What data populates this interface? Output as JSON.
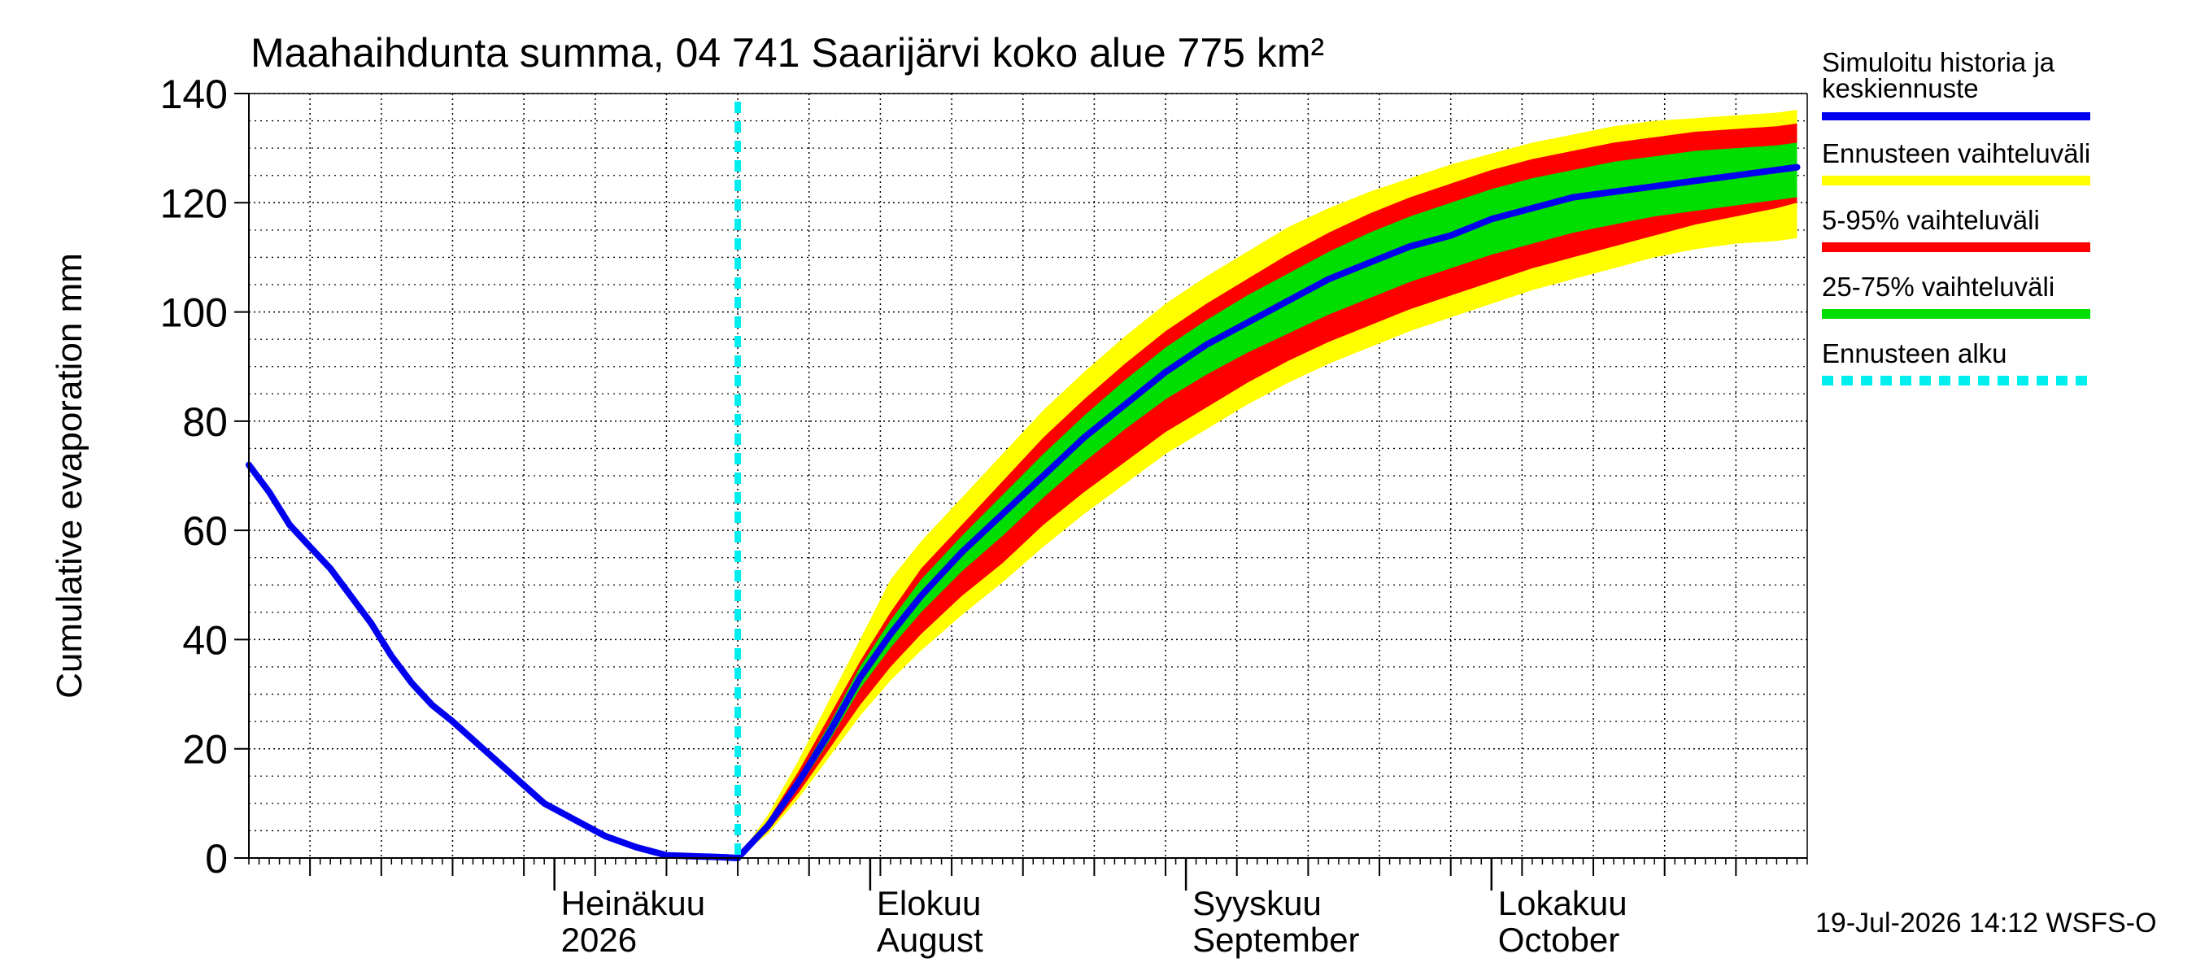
{
  "chart_data": {
    "type": "area",
    "title": "Maahaihdunta summa, 04 741 Saarijärvi koko alue 775 km²",
    "ylabel": "Cumulative evaporation   mm",
    "xlabel": "",
    "ylim": [
      0,
      140
    ],
    "y_ticks": [
      0,
      20,
      40,
      60,
      80,
      100,
      120,
      140
    ],
    "x_range": [
      "2026-06-01",
      "2026-10-31"
    ],
    "grid": true,
    "legend_position": "right",
    "month_labels": [
      {
        "date": "2026-07-01",
        "line1": "Heinäkuu",
        "line2": "2026"
      },
      {
        "date": "2026-08-01",
        "line1": "Elokuu",
        "line2": "August"
      },
      {
        "date": "2026-09-01",
        "line1": "Syyskuu",
        "line2": "September"
      },
      {
        "date": "2026-10-01",
        "line1": "Lokakuu",
        "line2": "October"
      }
    ],
    "forecast_start": "2026-07-19",
    "legend": [
      {
        "label": "Simuloitu historia ja keskiennuste",
        "color": "#0000ee",
        "style": "solid"
      },
      {
        "label": "Ennusteen vaihteluväli",
        "color": "#ffff00",
        "style": "solid"
      },
      {
        "label": "5-95% vaihteluväli",
        "color": "#ff0000",
        "style": "solid"
      },
      {
        "label": "25-75% vaihteluväli",
        "color": "#00dd00",
        "style": "solid"
      },
      {
        "label": "Ennusteen alku",
        "color": "#00eeee",
        "style": "dashed"
      }
    ],
    "history": {
      "dates": [
        "2026-06-01",
        "2026-06-03",
        "2026-06-05",
        "2026-06-07",
        "2026-06-09",
        "2026-06-11",
        "2026-06-13",
        "2026-06-15",
        "2026-06-17",
        "2026-06-19",
        "2026-06-21",
        "2026-06-24",
        "2026-06-27",
        "2026-06-30",
        "2026-07-03",
        "2026-07-06",
        "2026-07-09",
        "2026-07-12",
        "2026-07-15",
        "2026-07-17",
        "2026-07-19"
      ],
      "values": [
        72,
        67,
        61,
        57,
        53,
        48,
        43,
        37,
        32,
        28,
        25,
        20,
        15,
        10,
        7,
        4,
        2,
        0.5,
        0.3,
        0.2,
        0
      ]
    },
    "forecast": {
      "dates": [
        "2026-07-19",
        "2026-07-22",
        "2026-07-25",
        "2026-07-28",
        "2026-07-31",
        "2026-08-03",
        "2026-08-06",
        "2026-08-10",
        "2026-08-14",
        "2026-08-18",
        "2026-08-22",
        "2026-08-26",
        "2026-08-30",
        "2026-09-03",
        "2026-09-07",
        "2026-09-11",
        "2026-09-15",
        "2026-09-19",
        "2026-09-23",
        "2026-09-27",
        "2026-10-01",
        "2026-10-05",
        "2026-10-09",
        "2026-10-13",
        "2026-10-17",
        "2026-10-21",
        "2026-10-25",
        "2026-10-29",
        "2026-10-31"
      ],
      "median": [
        0,
        6,
        14,
        23,
        33,
        41,
        48,
        56,
        63,
        70,
        77,
        83,
        89,
        94,
        98,
        102,
        106,
        109,
        112,
        114,
        117,
        119,
        121,
        122,
        123,
        124,
        125,
        126,
        126.5
      ],
      "p25": [
        0,
        5.5,
        13,
        21.5,
        31,
        38.5,
        45,
        52.5,
        59,
        66,
        72.5,
        78.5,
        84,
        88.5,
        92.5,
        96,
        99.5,
        102.5,
        105.5,
        108,
        110.5,
        112.5,
        114.5,
        116,
        117.5,
        118.5,
        119.5,
        120.5,
        121
      ],
      "p75": [
        0,
        6.5,
        15,
        24.5,
        35,
        43.5,
        51,
        59,
        66.5,
        74,
        81,
        87.5,
        93.5,
        98.5,
        103,
        107,
        111,
        114.5,
        117.5,
        120,
        122.5,
        124.5,
        126,
        127.5,
        128.5,
        129.5,
        130,
        130.5,
        131
      ],
      "p5": [
        0,
        5,
        12,
        20,
        28,
        35,
        41,
        48,
        54,
        61,
        67,
        72.5,
        78,
        82.5,
        87,
        91,
        94.5,
        97.5,
        100.5,
        103,
        105.5,
        108,
        110,
        112,
        114,
        116,
        117.5,
        119,
        120
      ],
      "p95": [
        0,
        7,
        16,
        26,
        36,
        45,
        53,
        61,
        69,
        77,
        84,
        90.5,
        96.5,
        101.5,
        106,
        110.5,
        114.5,
        118,
        121,
        123.5,
        126,
        128,
        129.5,
        131,
        132,
        133,
        133.5,
        134,
        134.5
      ],
      "min": [
        0,
        4.5,
        11,
        18.5,
        26,
        32.5,
        38,
        44.5,
        50.5,
        57,
        63,
        68.5,
        74,
        78.5,
        83,
        87,
        90.5,
        93.5,
        96.5,
        99,
        101.5,
        104,
        106,
        108,
        110,
        111.5,
        112.5,
        113,
        113.5
      ],
      "max": [
        0,
        8,
        18,
        29,
        40,
        51,
        58,
        66,
        74,
        82,
        89,
        95.5,
        101.5,
        106.5,
        111,
        115.5,
        119,
        122,
        124.5,
        127,
        129,
        131,
        132.5,
        134,
        135,
        135.5,
        136,
        136.5,
        137
      ]
    }
  },
  "footer": {
    "timestamp": "19-Jul-2026 14:12 WSFS-O"
  }
}
